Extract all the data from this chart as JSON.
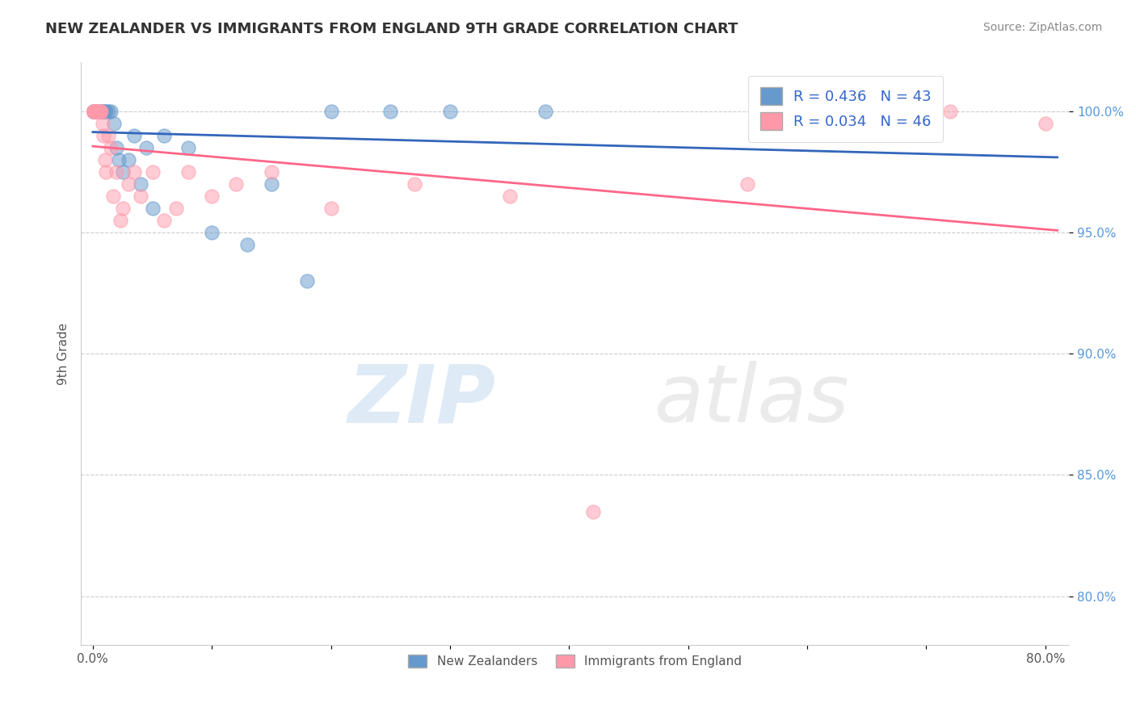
{
  "title": "NEW ZEALANDER VS IMMIGRANTS FROM ENGLAND 9TH GRADE CORRELATION CHART",
  "source": "Source: ZipAtlas.com",
  "ylabel": "9th Grade",
  "xlim": [
    -1.0,
    82.0
  ],
  "ylim": [
    78.0,
    102.0
  ],
  "legend_nz_R": 0.436,
  "legend_nz_N": 43,
  "legend_eng_R": 0.034,
  "legend_eng_N": 46,
  "nz_color": "#6699CC",
  "eng_color": "#FF99AA",
  "nz_line_color": "#3366BB",
  "eng_line_color": "#FF6688",
  "nz_x": [
    0.05,
    0.08,
    0.1,
    0.12,
    0.15,
    0.18,
    0.2,
    0.22,
    0.25,
    0.28,
    0.3,
    0.35,
    0.4,
    0.45,
    0.5,
    0.6,
    0.7,
    0.8,
    0.9,
    1.0,
    1.1,
    1.3,
    1.5,
    1.8,
    2.0,
    2.2,
    2.5,
    3.0,
    3.5,
    4.0,
    4.5,
    5.0,
    6.0,
    8.0,
    10.0,
    13.0,
    15.0,
    18.0,
    20.0,
    25.0,
    30.0,
    38.0,
    70.0
  ],
  "nz_y": [
    100.0,
    100.0,
    100.0,
    100.0,
    100.0,
    100.0,
    100.0,
    100.0,
    100.0,
    100.0,
    100.0,
    100.0,
    100.0,
    100.0,
    100.0,
    100.0,
    100.0,
    100.0,
    100.0,
    100.0,
    100.0,
    100.0,
    100.0,
    99.5,
    98.5,
    98.0,
    97.5,
    98.0,
    99.0,
    97.0,
    98.5,
    96.0,
    99.0,
    98.5,
    95.0,
    94.5,
    97.0,
    93.0,
    100.0,
    100.0,
    100.0,
    100.0,
    100.0
  ],
  "eng_x": [
    0.05,
    0.08,
    0.1,
    0.12,
    0.15,
    0.18,
    0.2,
    0.22,
    0.25,
    0.28,
    0.3,
    0.35,
    0.4,
    0.45,
    0.5,
    0.55,
    0.6,
    0.65,
    0.7,
    0.8,
    0.9,
    1.0,
    1.1,
    1.3,
    1.5,
    1.7,
    2.0,
    2.3,
    2.5,
    3.0,
    3.5,
    4.0,
    5.0,
    6.0,
    7.0,
    8.0,
    10.0,
    12.0,
    15.0,
    20.0,
    27.0,
    35.0,
    42.0,
    55.0,
    72.0,
    80.0
  ],
  "eng_y": [
    100.0,
    100.0,
    100.0,
    100.0,
    100.0,
    100.0,
    100.0,
    100.0,
    100.0,
    100.0,
    100.0,
    100.0,
    100.0,
    100.0,
    100.0,
    100.0,
    100.0,
    100.0,
    100.0,
    99.5,
    99.0,
    98.0,
    97.5,
    99.0,
    98.5,
    96.5,
    97.5,
    95.5,
    96.0,
    97.0,
    97.5,
    96.5,
    97.5,
    95.5,
    96.0,
    97.5,
    96.5,
    97.0,
    97.5,
    96.0,
    97.0,
    96.5,
    83.5,
    97.0,
    100.0,
    99.5
  ]
}
